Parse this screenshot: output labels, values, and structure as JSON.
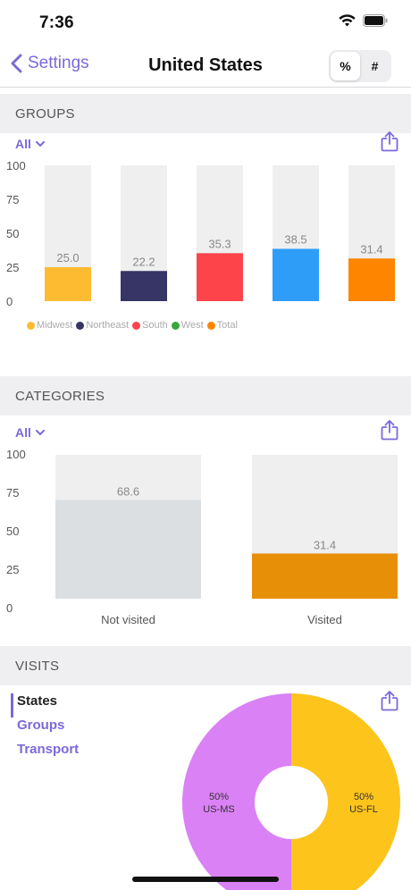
{
  "status": {
    "time": "7:36"
  },
  "nav": {
    "back_label": "Settings",
    "title": "United States",
    "segments": [
      "%",
      "#"
    ],
    "selected_segment": "%"
  },
  "groups": {
    "header": "GROUPS",
    "filter_label": "All",
    "chart_data": {
      "type": "bar",
      "categories": [
        "Midwest",
        "Northeast",
        "South",
        "West",
        "Total"
      ],
      "values": [
        25.0,
        22.2,
        35.3,
        38.5,
        31.4
      ],
      "value_labels": [
        "25.0",
        "22.2",
        "35.3",
        "38.5",
        "31.4"
      ],
      "colors": [
        "#fdbb32",
        "#363566",
        "#fd444b",
        "#2d9df8",
        "#fd8500"
      ],
      "legend_dot_colors": [
        "#fdbb32",
        "#363566",
        "#fd444b",
        "#36a83c",
        "#fd8500"
      ],
      "ylim": [
        0,
        100
      ],
      "yticks": [
        "100",
        "75",
        "50",
        "25",
        "0"
      ],
      "background_bar_color": "#efefef",
      "legend_position": "bottom-left"
    }
  },
  "categories": {
    "header": "CATEGORIES",
    "filter_label": "All",
    "chart_data": {
      "type": "bar",
      "categories": [
        "Not visited",
        "Visited"
      ],
      "values": [
        68.6,
        31.4
      ],
      "value_labels": [
        "68.6",
        "31.4"
      ],
      "colors": [
        "#dcdfe1",
        "#e88f08"
      ],
      "ylim": [
        0,
        100
      ],
      "yticks": [
        "100",
        "75",
        "50",
        "25",
        "0"
      ],
      "background_bar_color": "#efefef"
    }
  },
  "visits": {
    "header": "VISITS",
    "items": [
      "States",
      "Groups",
      "Transport"
    ],
    "selected": "States",
    "chart_data": {
      "type": "pie",
      "slices": [
        {
          "label": "US-FL",
          "value": 50,
          "value_label": "50%",
          "color": "#fdc41b"
        },
        {
          "label": "US-MS",
          "value": 50,
          "value_label": "50%",
          "color": "#da81f5"
        }
      ]
    }
  },
  "colors": {
    "accent": "#7d68d9"
  }
}
